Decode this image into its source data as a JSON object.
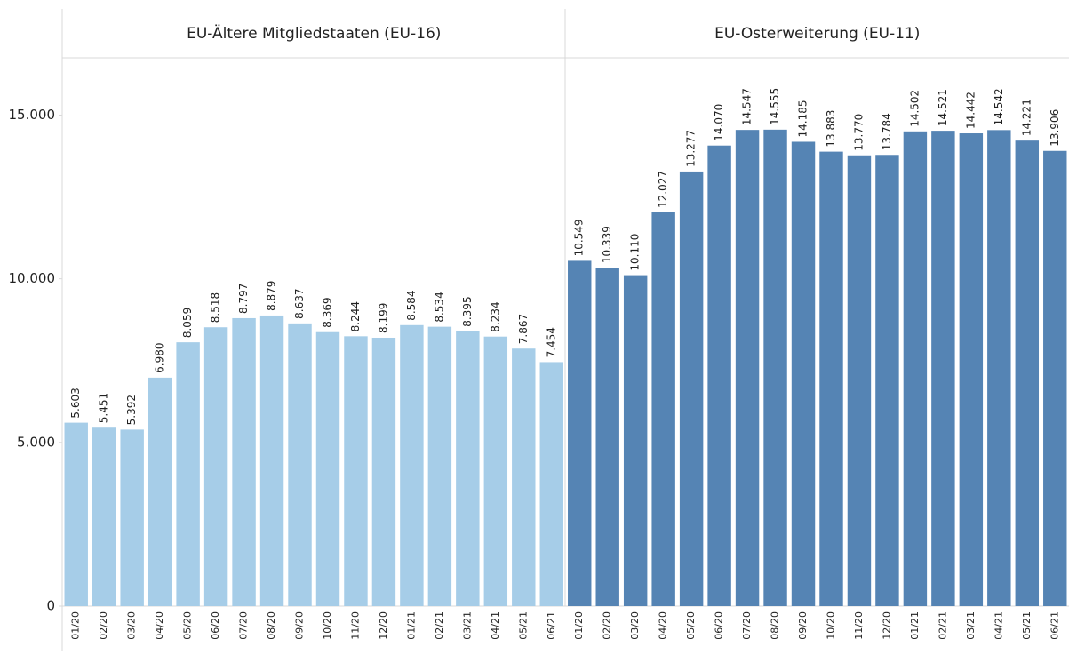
{
  "chart_data": [
    {
      "type": "bar",
      "title": "EU-Ältere Mitgliedstaaten (EU-16)",
      "categories": [
        "01/20",
        "02/20",
        "03/20",
        "04/20",
        "05/20",
        "06/20",
        "07/20",
        "08/20",
        "09/20",
        "10/20",
        "11/20",
        "12/20",
        "01/21",
        "02/21",
        "03/21",
        "04/21",
        "05/21",
        "06/21"
      ],
      "values": [
        5603,
        5451,
        5392,
        6980,
        8059,
        8518,
        8797,
        8879,
        8637,
        8369,
        8244,
        8199,
        8584,
        8534,
        8395,
        8234,
        7867,
        7454
      ],
      "value_labels": [
        "5.603",
        "5.451",
        "5.392",
        "6.980",
        "8.059",
        "8.518",
        "8.797",
        "8.879",
        "8.637",
        "8.369",
        "8.244",
        "8.199",
        "8.584",
        "8.534",
        "8.395",
        "8.234",
        "7.867",
        "7.454"
      ],
      "color": "#a6cde8",
      "ylim": [
        0,
        16750
      ],
      "yticks": [
        0,
        {
          "value": 5000,
          "label": "5.000"
        },
        {
          "value": 10000,
          "label": "10.000"
        },
        {
          "value": 15000,
          "label": "15.000"
        }
      ]
    },
    {
      "type": "bar",
      "title": "EU-Osterweiterung (EU-11)",
      "categories": [
        "01/20",
        "02/20",
        "03/20",
        "04/20",
        "05/20",
        "06/20",
        "07/20",
        "08/20",
        "09/20",
        "10/20",
        "11/20",
        "12/20",
        "01/21",
        "02/21",
        "03/21",
        "04/21",
        "05/21",
        "06/21"
      ],
      "values": [
        10549,
        10339,
        10110,
        12027,
        13277,
        14070,
        14547,
        14555,
        14185,
        13883,
        13770,
        13784,
        14502,
        14521,
        14442,
        14542,
        14221,
        13906
      ],
      "value_labels": [
        "10.549",
        "10.339",
        "10.110",
        "12.027",
        "13.277",
        "14.070",
        "14.547",
        "14.555",
        "14.185",
        "13.883",
        "13.770",
        "13.784",
        "14.502",
        "14.521",
        "14.442",
        "14.542",
        "14.221",
        "13.906"
      ],
      "color": "#5584b4",
      "ylim": [
        0,
        16750
      ]
    }
  ]
}
